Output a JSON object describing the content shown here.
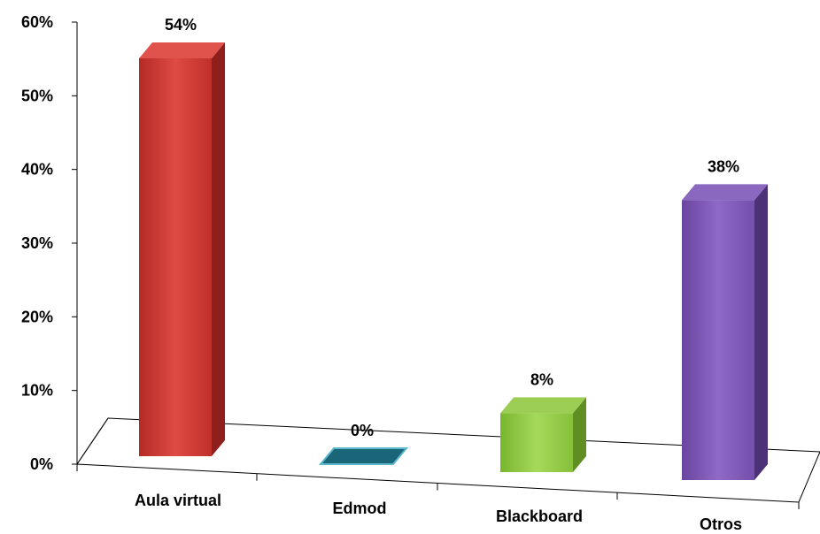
{
  "chart_data": {
    "type": "bar",
    "categories": [
      "Aula virtual",
      "Edmod",
      "Blackboard",
      "Otros"
    ],
    "values": [
      54,
      0,
      8,
      38
    ],
    "data_labels": [
      "54%",
      "0%",
      "8%",
      "38%"
    ],
    "ylim": [
      0,
      60
    ],
    "yticks": [
      "0%",
      "10%",
      "20%",
      "30%",
      "40%",
      "50%",
      "60%"
    ],
    "title": "",
    "xlabel": "",
    "ylabel": "",
    "grid": false,
    "legend": "none",
    "colors": {
      "Aula virtual": "#d63a35",
      "Edmod": "#1e6a7c",
      "Blackboard": "#8cc63f",
      "Otros": "#7e57b5"
    }
  }
}
